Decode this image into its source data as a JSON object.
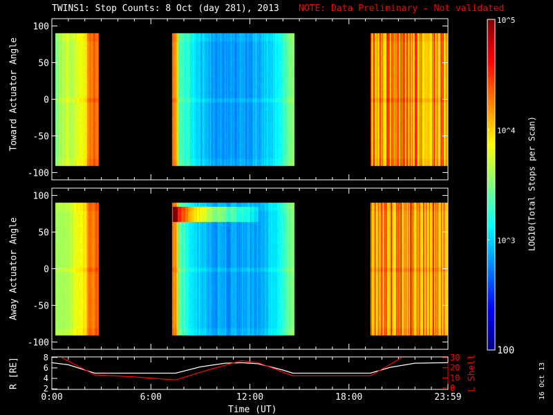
{
  "title": "TWINS1: Stop Counts:  8 Oct (day 281), 2013",
  "note": "NOTE: Data Preliminary - Not validated",
  "side_date": "16 Oct 13",
  "chart_data": [
    {
      "type": "heatmap",
      "name": "toward",
      "ylabel": "Toward Actuator Angle",
      "ylim": [
        -110,
        110
      ],
      "yticks": [
        "100",
        "50",
        "0",
        "-50",
        "-100"
      ],
      "yticks_v": [
        100,
        50,
        0,
        -50,
        -100
      ],
      "angle_range": [
        -90,
        90
      ],
      "blocks_hours": [
        [
          0.2,
          2.85
        ],
        [
          7.3,
          14.7
        ],
        [
          19.3,
          24
        ]
      ],
      "xlim_hours": [
        0,
        24
      ]
    },
    {
      "type": "heatmap",
      "name": "away",
      "ylabel": "Away Actuator Angle",
      "ylim": [
        -110,
        110
      ],
      "yticks": [
        "100",
        "50",
        "0",
        "-50",
        "-100"
      ],
      "yticks_v": [
        100,
        50,
        0,
        -50,
        -100
      ],
      "angle_range": [
        -90,
        90
      ],
      "blocks_hours": [
        [
          0.2,
          2.85
        ],
        [
          7.3,
          14.7
        ],
        [
          19.3,
          24
        ]
      ],
      "xlim_hours": [
        0,
        24
      ]
    },
    {
      "type": "line",
      "name": "orbit",
      "ylabel": "R [RE]",
      "ylabel2": "L Shell",
      "ylim": [
        1.8,
        8.2
      ],
      "y2lim": [
        0,
        30
      ],
      "yticks": [
        "8",
        "6",
        "4",
        "2"
      ],
      "yticks_v": [
        8,
        6,
        4,
        2
      ],
      "y2ticks": [
        "30",
        "20",
        "10",
        "0"
      ],
      "y2ticks_v": [
        30,
        20,
        10,
        0
      ],
      "xlabel": "Time (UT)",
      "xticks": [
        "0:00",
        "6:00",
        "12:00",
        "18:00",
        "23:59"
      ],
      "xticks_v": [
        0,
        6,
        12,
        18,
        24
      ],
      "series": [
        {
          "name": "R",
          "color": "#ffffff",
          "x": [
            0,
            1,
            2.6,
            7.5,
            9,
            10.5,
            11.5,
            12.5,
            14,
            14.6,
            19.3,
            20.5,
            22,
            24
          ],
          "y": [
            7,
            6.6,
            5,
            5,
            6.2,
            6.9,
            7,
            6.8,
            5.6,
            5,
            5,
            6.1,
            6.9,
            7
          ]
        },
        {
          "name": "L Shell",
          "color": "#ff0000",
          "x": [
            0.6,
            2.6,
            5,
            7.5,
            9.5,
            11.5,
            12.5,
            14.6,
            16,
            19.3,
            21.2
          ],
          "y": [
            30,
            13,
            11,
            8,
            18,
            27,
            25,
            12,
            12,
            12,
            30
          ]
        }
      ]
    },
    {
      "type": "colorbar",
      "label": "LOG10(Total Stops per Scan)",
      "ticks": [
        "10^5",
        "10^4",
        "10^3",
        "100"
      ],
      "ticks_v": [
        5,
        4,
        3,
        2
      ],
      "range_log": [
        2,
        5
      ],
      "colormap": "jet"
    }
  ]
}
